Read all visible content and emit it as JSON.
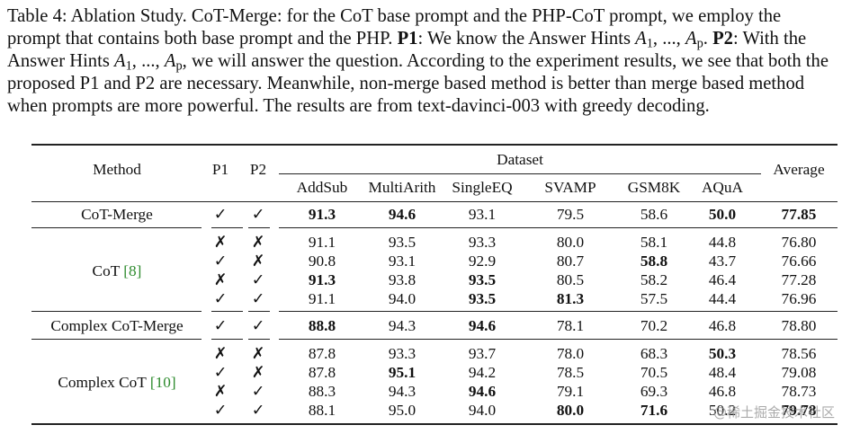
{
  "caption": {
    "label": "Table 4: Ablation Study. CoT-Merge: for the CoT base prompt and the PHP-CoT prompt, we employ the prompt that contains both base prompt and the PHP.",
    "p1_label": "P1",
    "p1_text_a": ": We know the Answer Hints",
    "a1": "A",
    "a1_sub": "1",
    "dots": ", ..., ",
    "ap": "A",
    "ap_sub": "p",
    "period": ".",
    "p2_label": "P2",
    "p2_text_a": ": With the Answer Hints",
    "comma": ",",
    "p2_text_b": "we will answer the question. According to the experiment results, we see that both the proposed P1 and P2 are necessary. Meanwhile, non-merge based method is better than merge based method when prompts are more powerful. The results are from text-davinci-003 with greedy decoding."
  },
  "header": {
    "method": "Method",
    "p1": "P1",
    "p2": "P2",
    "dataset": "Dataset",
    "average": "Average",
    "datasets": [
      "AddSub",
      "MultiArith",
      "SingleEQ",
      "SVAMP",
      "GSM8K",
      "AQuA"
    ]
  },
  "groups": [
    {
      "name": "CoT-Merge",
      "cite": "",
      "rows": [
        {
          "p1": "✓",
          "p2": "✓",
          "values": [
            "91.3",
            "94.6",
            "93.1",
            "79.5",
            "58.6",
            "50.0"
          ],
          "average": "77.85"
        }
      ]
    },
    {
      "name": "CoT",
      "cite": "[8]",
      "rows": [
        {
          "p1": "✗",
          "p2": "✗",
          "values": [
            "91.1",
            "93.5",
            "93.3",
            "80.0",
            "58.1",
            "44.8"
          ],
          "average": "76.80"
        },
        {
          "p1": "✓",
          "p2": "✗",
          "values": [
            "90.8",
            "93.1",
            "92.9",
            "80.7",
            "58.8",
            "43.7"
          ],
          "average": "76.66"
        },
        {
          "p1": "✗",
          "p2": "✓",
          "values": [
            "91.3",
            "93.8",
            "93.5",
            "80.5",
            "58.2",
            "46.4"
          ],
          "average": "77.28"
        },
        {
          "p1": "✓",
          "p2": "✓",
          "values": [
            "91.1",
            "94.0",
            "93.5",
            "81.3",
            "57.5",
            "44.4"
          ],
          "average": "76.96"
        }
      ]
    },
    {
      "name": "Complex CoT-Merge",
      "cite": "",
      "rows": [
        {
          "p1": "✓",
          "p2": "✓",
          "values": [
            "88.8",
            "94.3",
            "94.6",
            "78.1",
            "70.2",
            "46.8"
          ],
          "average": "78.80"
        }
      ]
    },
    {
      "name": "Complex CoT",
      "cite": "[10]",
      "rows": [
        {
          "p1": "✗",
          "p2": "✗",
          "values": [
            "87.8",
            "93.3",
            "93.7",
            "78.0",
            "68.3",
            "50.3"
          ],
          "average": "78.56"
        },
        {
          "p1": "✓",
          "p2": "✗",
          "values": [
            "87.8",
            "95.1",
            "94.2",
            "78.5",
            "70.5",
            "48.4"
          ],
          "average": "79.08"
        },
        {
          "p1": "✗",
          "p2": "✓",
          "values": [
            "88.3",
            "94.3",
            "94.6",
            "79.1",
            "69.3",
            "46.8"
          ],
          "average": "78.73"
        },
        {
          "p1": "✓",
          "p2": "✓",
          "values": [
            "88.1",
            "95.0",
            "94.0",
            "80.0",
            "71.6",
            "50.2"
          ],
          "average": "79.78"
        }
      ]
    }
  ],
  "watermark": "@稀土掘金技术社区"
}
